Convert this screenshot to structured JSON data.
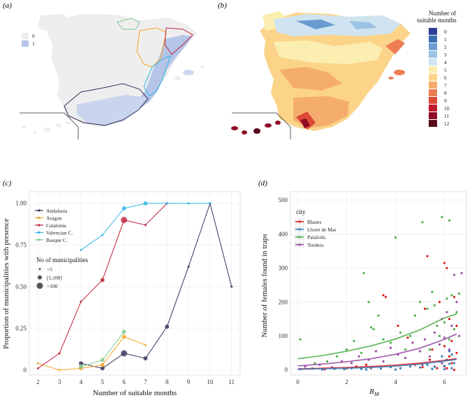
{
  "panels": {
    "a": {
      "label": "(a)",
      "legend": [
        {
          "label": "0",
          "color": "#eeeeee"
        },
        {
          "label": "1",
          "color": "#b4c5e8"
        }
      ]
    },
    "b": {
      "label": "(b)",
      "legend_title_line1": "Number of",
      "legend_title_line2": "suitable months",
      "scale": [
        {
          "label": "0",
          "color": "#2b3f97"
        },
        {
          "label": "1",
          "color": "#3b6db3"
        },
        {
          "label": "2",
          "color": "#6a9bd1"
        },
        {
          "label": "3",
          "color": "#9cc3e4"
        },
        {
          "label": "4",
          "color": "#cfe4f0"
        },
        {
          "label": "5",
          "color": "#fbeeb0"
        },
        {
          "label": "6",
          "color": "#fbd48a"
        },
        {
          "label": "7",
          "color": "#f5ad6e"
        },
        {
          "label": "8",
          "color": "#ed7d52"
        },
        {
          "label": "9",
          "color": "#dc4a37"
        },
        {
          "label": "10",
          "color": "#c0192d"
        },
        {
          "label": "11",
          "color": "#8e0c25"
        },
        {
          "label": "12",
          "color": "#5a0a1c"
        }
      ]
    },
    "c": {
      "label": "(c)"
    },
    "d": {
      "label": "(d)"
    }
  },
  "chart_data": [
    {
      "id": "c",
      "type": "line",
      "xlabel": "Number of suitable months",
      "ylabel": "Proportion of municipalities with presence",
      "xlim": [
        1.6,
        11.4
      ],
      "ylim": [
        -0.03,
        1.07
      ],
      "xticks": [
        2,
        3,
        4,
        5,
        6,
        7,
        8,
        9,
        10,
        11
      ],
      "yticks": [
        0,
        0.25,
        0.5,
        0.75,
        1
      ],
      "ytick_labels": [
        "0",
        "0.25",
        "0.50",
        "0.75",
        "1.00"
      ],
      "series": [
        {
          "name": "Andalusia",
          "color": "#3b2f5e",
          "x": [
            4,
            5,
            6,
            7,
            8,
            9,
            10,
            11
          ],
          "y": [
            0.04,
            0.01,
            0.1,
            0.07,
            0.26,
            0.62,
            1.0,
            0.5
          ],
          "sizes": [
            2,
            2,
            3,
            2,
            2,
            1,
            1,
            1
          ]
        },
        {
          "name": "Aragon",
          "color": "#f5a623",
          "x": [
            2,
            3,
            4,
            5,
            6,
            7
          ],
          "y": [
            0.04,
            0.0,
            0.01,
            0.03,
            0.2,
            0.15
          ],
          "sizes": [
            1,
            1,
            2,
            2,
            2,
            1
          ]
        },
        {
          "name": "Catalonia",
          "color": "#c0213a",
          "x": [
            2,
            3,
            4,
            5,
            6,
            7,
            8
          ],
          "y": [
            0.01,
            0.1,
            0.41,
            0.54,
            0.9,
            0.87,
            1.0
          ],
          "sizes": [
            1,
            1,
            1,
            2,
            3,
            1,
            1
          ]
        },
        {
          "name": "Valencian C.",
          "color": "#2fb6e6",
          "x": [
            4,
            5,
            6,
            7,
            8,
            9,
            10
          ],
          "y": [
            0.72,
            0.81,
            0.97,
            1.0,
            1.0,
            1.0,
            1.0
          ],
          "sizes": [
            1,
            1,
            2,
            2,
            1,
            1,
            1
          ]
        },
        {
          "name": "Basque C.",
          "color": "#7ec98c",
          "x": [
            4,
            5,
            6
          ],
          "y": [
            0.02,
            0.06,
            0.23
          ],
          "sizes": [
            2,
            2,
            2
          ]
        }
      ],
      "size_legend_title": "No of municipalities",
      "size_legend": [
        "<5",
        "[5,100]",
        ">100"
      ]
    },
    {
      "id": "d",
      "type": "scatter",
      "xlabel": "R",
      "xlabel_sub": "M",
      "ylabel": "Number of females found in traps",
      "xlim": [
        -0.3,
        6.9
      ],
      "ylim": [
        -15,
        525
      ],
      "xticks": [
        0,
        2,
        4,
        6
      ],
      "yticks": [
        0,
        100,
        200,
        300,
        400,
        500
      ],
      "legend_title": "city",
      "series": [
        {
          "name": "Blanes",
          "color": "#e41a1c",
          "points": [
            [
              1.1,
              2
            ],
            [
              2.0,
              5
            ],
            [
              2.8,
              15
            ],
            [
              3.5,
              220
            ],
            [
              3.6,
              215
            ],
            [
              4.1,
              130
            ],
            [
              4.5,
              95
            ],
            [
              5.1,
              8
            ],
            [
              5.2,
              180
            ],
            [
              5.3,
              335
            ],
            [
              5.4,
              30
            ],
            [
              5.5,
              60
            ],
            [
              5.6,
              10
            ],
            [
              5.8,
              200
            ],
            [
              5.9,
              20
            ],
            [
              6.0,
              315
            ],
            [
              6.0,
              70
            ],
            [
              6.1,
              300
            ],
            [
              6.1,
              5
            ],
            [
              6.2,
              150
            ],
            [
              6.2,
              40
            ],
            [
              6.3,
              85
            ],
            [
              6.3,
              20
            ],
            [
              6.4,
              215
            ],
            [
              6.4,
              0
            ],
            [
              6.5,
              50
            ],
            [
              6.5,
              130
            ],
            [
              6.0,
              10
            ],
            [
              5.7,
              5
            ],
            [
              4.8,
              15
            ],
            [
              3.0,
              5
            ],
            [
              2.4,
              10
            ]
          ],
          "fit": [
            [
              0,
              3
            ],
            [
              1,
              5
            ],
            [
              2,
              7
            ],
            [
              3,
              10
            ],
            [
              4,
              14
            ],
            [
              5,
              20
            ],
            [
              6,
              28
            ],
            [
              6.5,
              33
            ]
          ]
        },
        {
          "name": "Lloret de Mar",
          "color": "#377eb8",
          "points": [
            [
              0.1,
              2
            ],
            [
              0.6,
              4
            ],
            [
              1.0,
              1
            ],
            [
              1.5,
              3
            ],
            [
              1.9,
              2
            ],
            [
              2.2,
              5
            ],
            [
              2.6,
              3
            ],
            [
              3.0,
              6
            ],
            [
              3.4,
              4
            ],
            [
              3.8,
              8
            ],
            [
              4.2,
              5
            ],
            [
              4.6,
              10
            ],
            [
              5.0,
              7
            ],
            [
              5.3,
              15
            ],
            [
              5.6,
              9
            ],
            [
              5.8,
              25
            ],
            [
              5.9,
              40
            ],
            [
              6.0,
              12
            ],
            [
              6.1,
              30
            ],
            [
              6.2,
              55
            ],
            [
              6.2,
              18
            ],
            [
              6.3,
              45
            ],
            [
              6.3,
              5
            ],
            [
              6.4,
              20
            ],
            [
              6.0,
              2
            ],
            [
              5.5,
              3
            ],
            [
              4.0,
              1
            ],
            [
              2.8,
              1
            ]
          ],
          "fit": [
            [
              0,
              2
            ],
            [
              1,
              3.5
            ],
            [
              2,
              5
            ],
            [
              3,
              7
            ],
            [
              4,
              11
            ],
            [
              5,
              17
            ],
            [
              6,
              26
            ],
            [
              6.5,
              31
            ]
          ]
        },
        {
          "name": "Palafolls",
          "color": "#4daf4a",
          "points": [
            [
              0.1,
              90
            ],
            [
              0.7,
              20
            ],
            [
              1.2,
              25
            ],
            [
              1.6,
              40
            ],
            [
              2.0,
              60
            ],
            [
              2.3,
              85
            ],
            [
              2.6,
              50
            ],
            [
              2.7,
              285
            ],
            [
              2.9,
              200
            ],
            [
              3.0,
              125
            ],
            [
              3.1,
              120
            ],
            [
              3.3,
              160
            ],
            [
              3.5,
              90
            ],
            [
              3.8,
              80
            ],
            [
              4.0,
              390
            ],
            [
              4.2,
              110
            ],
            [
              4.4,
              60
            ],
            [
              4.6,
              100
            ],
            [
              4.8,
              160
            ],
            [
              5.0,
              200
            ],
            [
              5.1,
              435
            ],
            [
              5.3,
              180
            ],
            [
              5.5,
              230
            ],
            [
              5.6,
              190
            ],
            [
              5.8,
              100
            ],
            [
              5.9,
              450
            ],
            [
              6.0,
              140
            ],
            [
              6.1,
              210
            ],
            [
              6.2,
              440
            ],
            [
              6.3,
              220
            ],
            [
              6.4,
              120
            ],
            [
              6.5,
              170
            ],
            [
              6.6,
              225
            ],
            [
              6.2,
              90
            ],
            [
              5.7,
              130
            ],
            [
              5.4,
              60
            ]
          ],
          "fit": [
            [
              0,
              33
            ],
            [
              1,
              42
            ],
            [
              2,
              55
            ],
            [
              3,
              71
            ],
            [
              4,
              91
            ],
            [
              5,
              118
            ],
            [
              6,
              153
            ],
            [
              6.5,
              165
            ]
          ]
        },
        {
          "name": "Tordera",
          "color": "#984ea3",
          "points": [
            [
              0.3,
              10
            ],
            [
              0.9,
              15
            ],
            [
              1.4,
              8
            ],
            [
              1.8,
              25
            ],
            [
              2.2,
              20
            ],
            [
              2.5,
              40
            ],
            [
              2.9,
              30
            ],
            [
              3.2,
              55
            ],
            [
              3.5,
              25
            ],
            [
              3.8,
              65
            ],
            [
              4.1,
              45
            ],
            [
              4.4,
              35
            ],
            [
              4.7,
              80
            ],
            [
              5.0,
              55
            ],
            [
              5.2,
              90
            ],
            [
              5.4,
              40
            ],
            [
              5.6,
              110
            ],
            [
              5.8,
              75
            ],
            [
              5.9,
              150
            ],
            [
              6.0,
              95
            ],
            [
              6.1,
              170
            ],
            [
              6.2,
              60
            ],
            [
              6.3,
              130
            ],
            [
              6.4,
              280
            ],
            [
              6.5,
              200
            ],
            [
              6.6,
              100
            ],
            [
              6.7,
              285
            ],
            [
              6.3,
              30
            ],
            [
              5.9,
              20
            ],
            [
              5.1,
              15
            ]
          ],
          "fit": [
            [
              0,
              12
            ],
            [
              1,
              17
            ],
            [
              2,
              24
            ],
            [
              3,
              33
            ],
            [
              4,
              46
            ],
            [
              5,
              64
            ],
            [
              6,
              90
            ],
            [
              6.5,
              106
            ]
          ]
        }
      ]
    }
  ]
}
